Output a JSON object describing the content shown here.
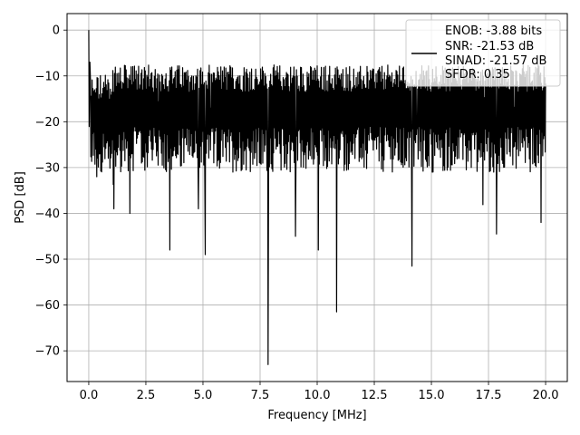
{
  "chart_data": {
    "type": "line",
    "title": "",
    "xlabel": "Frequency [MHz]",
    "ylabel": "PSD [dB]",
    "xlim": [
      -0.95,
      20.95
    ],
    "ylim": [
      -76.7,
      3.6
    ],
    "grid": true,
    "xticks": [
      0.0,
      2.5,
      5.0,
      7.5,
      10.0,
      12.5,
      15.0,
      17.5,
      20.0
    ],
    "xtick_labels": [
      "0.0",
      "2.5",
      "5.0",
      "7.5",
      "10.0",
      "12.5",
      "15.0",
      "17.5",
      "20.0"
    ],
    "yticks": [
      0,
      -10,
      -20,
      -30,
      -40,
      -50,
      -60,
      -70
    ],
    "ytick_labels": [
      "0",
      "−10",
      "−20",
      "−30",
      "−40",
      "−50",
      "−60",
      "−70"
    ],
    "legend_position": "top-right",
    "legend_entries": [
      "ENOB: -3.88 bits",
      "SNR: -21.53 dB",
      "SINAD: -21.57 dB",
      "SFDR: 0.35"
    ],
    "series": [
      {
        "color": "#000000",
        "x_range": [
          0.0,
          20.0
        ],
        "noise_floor": {
          "top_db": -10,
          "bottom_db": -28
        },
        "peaks": [
          {
            "x": 0.0,
            "y": 0.0
          },
          {
            "x": 0.05,
            "y": -7
          },
          {
            "x": 0.35,
            "y": -32
          },
          {
            "x": 1.1,
            "y": -39
          },
          {
            "x": 1.8,
            "y": -40
          },
          {
            "x": 3.55,
            "y": -48
          },
          {
            "x": 4.8,
            "y": -39
          },
          {
            "x": 5.1,
            "y": -49
          },
          {
            "x": 7.85,
            "y": -73
          },
          {
            "x": 9.05,
            "y": -45
          },
          {
            "x": 10.05,
            "y": -48
          },
          {
            "x": 10.85,
            "y": -61.5
          },
          {
            "x": 14.15,
            "y": -51.5
          },
          {
            "x": 17.85,
            "y": -44.5
          },
          {
            "x": 19.8,
            "y": -42
          }
        ]
      }
    ]
  }
}
